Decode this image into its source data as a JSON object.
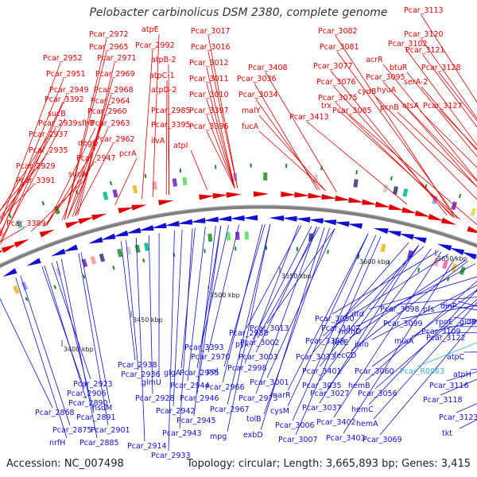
{
  "title": "Pelobacter carbinolicus DSM 2380, complete genome",
  "footer": {
    "accession": "Accession: NC_007498",
    "summary": "Topology: circular; Length: 3,665,893 bp; Genes: 3,415"
  },
  "colors": {
    "forward_strand": "#e00000",
    "reverse_strand": "#1010d0",
    "rna_label": "#33b5d0",
    "backbone": "#808080",
    "tick_green": "#1a8a1a"
  },
  "kbp_ticks": [
    "3400 kbp",
    "3450 kbp",
    "3500 kbp",
    "3550 kbp",
    "3600 kbp",
    "3650 kbp"
  ],
  "forward_labels": [
    "Pcar_3389",
    "Pcar_3391",
    "Pcar_2929",
    "Pcar_2935",
    "Pcar_2937",
    "Pcar_2939",
    "sucB",
    "Pcar_3392",
    "Pcar_2949",
    "Pcar_2951",
    "Pcar_2952",
    "Pcar_2972",
    "Pcar_2965",
    "Pcar_2971",
    "Pcar_2969",
    "Pcar_2968",
    "Pcar_2964",
    "Pcar_2960",
    "Pcar_2963",
    "Pcar_2962",
    "sfhB",
    "degQ",
    "Pcar_2947",
    "sucA",
    "pcrA",
    "atpE",
    "Pcar_2992",
    "atpB-2",
    "atpC-1",
    "atpD-2",
    "Pcar_2985",
    "Pcar_3395",
    "ilvA",
    "atpI",
    "Pcar_3017",
    "Pcar_3016",
    "Pcar_3012",
    "Pcar_3011",
    "Pcar_3010",
    "Pcar_3397",
    "Pcar_3396",
    "Pcar_3408",
    "Pcar_3036",
    "Pcar_3034",
    "malY",
    "fucA",
    "Pcar_3413",
    "Pcar_3082",
    "Pcar_3081",
    "Pcar_3077",
    "Pcar_3076",
    "Pcar_3075",
    "trx",
    "Pcar_3085",
    "acrR",
    "cydB",
    "Pcar_3095",
    "Pcar_3102",
    "btuR",
    "hyuA",
    "pcnB",
    "Pcar_3113",
    "Pcar_3120",
    "Pcar_3121",
    "Pcar_3128",
    "serA-2",
    "otsA",
    "Pcar_3127"
  ],
  "reverse_labels": [
    "Pcar_2868",
    "nrfH",
    "Pcar_2875",
    "Pcar_2890",
    "Pcar_2891",
    "Pcar_2885",
    "Pcar_2923",
    "Pcar_2906",
    "Pcar_2901",
    "hsdM",
    "Pcar_2914",
    "Pcar_2938",
    "Pcar_2936",
    "glmU",
    "Pcar_2928",
    "Pcar_2933",
    "glgA",
    "Pcar_2944",
    "Pcar_2942",
    "Pcar_2945",
    "Pcar_2943",
    "Pcar_2955",
    "Pcar_2946",
    "Pcar_3393",
    "Pcar_2970",
    "pal",
    "Pcar_2966",
    "Pcar_2967",
    "mpg",
    "Pcar_2988",
    "pyk",
    "Pcar_3002",
    "Pcar_2998",
    "Pcar_3003",
    "Pcar_2973",
    "tolB",
    "exbD",
    "Pcar_3001",
    "Pcar_3013",
    "Pcar_3050",
    "Pcar_3407",
    "Pcar_3398",
    "Pcar_3033",
    "marR",
    "cysM",
    "Pcar_3006",
    "Pcar_3007",
    "Pcar_3401",
    "Pcar_3035",
    "Pcar_3027",
    "Pcar_3037",
    "Pcar_3402",
    "Pcar_3403",
    "dtd",
    "hemD",
    "fecE",
    "fecCD",
    "info",
    "Pcar_3060",
    "hemB",
    "Pcar_3056",
    "hemC",
    "hemA",
    "Pcar_3069",
    "Pcar_3098",
    "Pcar_3099",
    "miaA",
    "pfs",
    "dinP",
    "rpoE",
    "gidB",
    "Pcar_3109",
    "Pcar_3122",
    "atpC",
    "atpH",
    "Pcar_3116",
    "Pcar_3118",
    "Pcar_3123",
    "tkt"
  ],
  "rna_labels": [
    "Pcar_R0063"
  ]
}
